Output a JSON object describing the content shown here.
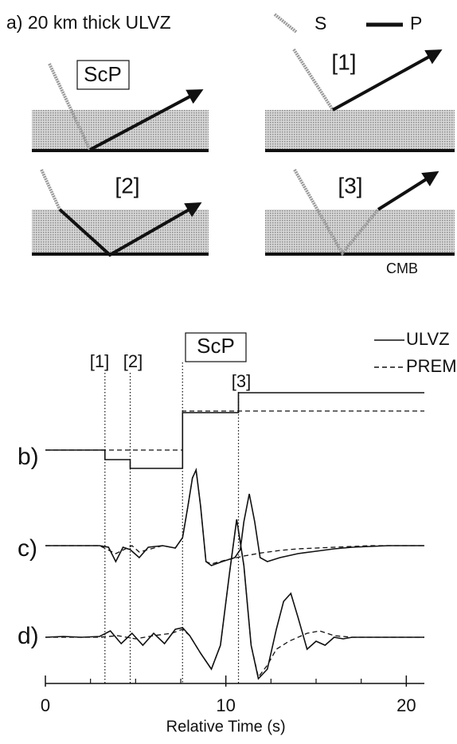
{
  "panel_a": {
    "label": "a) 20 km thick ULVZ",
    "legend": [
      "S",
      "P"
    ],
    "diagrams": [
      "ScP",
      "[1]",
      "[2]",
      "[3]"
    ],
    "cmb_label": "CMB"
  },
  "chart_data": {
    "type": "line",
    "xlabel": "Relative Time (s)",
    "xlim": [
      0,
      21
    ],
    "xticks": [
      0,
      10,
      20
    ],
    "xminorticks": [
      2.5,
      5,
      7.5,
      12.5,
      15,
      17.5
    ],
    "markers": [
      {
        "label": "[1]",
        "x": 3.3
      },
      {
        "label": "[2]",
        "x": 4.7
      },
      {
        "label": "ScP",
        "x": 7.6
      },
      {
        "label": "[3]",
        "x": 10.7
      }
    ],
    "panels": [
      {
        "label": "b)",
        "series": [
          {
            "name": "ULVZ",
            "style": "solid",
            "color": "#111111",
            "x": [
              0,
              3.3,
              3.3,
              4.7,
              4.7,
              7.6,
              7.6,
              10.7,
              10.7,
              21
            ],
            "values": [
              0,
              0,
              -0.12,
              -0.12,
              -0.23,
              -0.23,
              0.47,
              0.47,
              0.72,
              0.72
            ]
          },
          {
            "name": "PREM",
            "style": "dashed",
            "color": "#111111",
            "x": [
              0,
              7.6,
              7.6,
              21
            ],
            "values": [
              0,
              0,
              0.49,
              0.49
            ]
          }
        ]
      },
      {
        "label": "c)",
        "series": [
          {
            "name": "ULVZ",
            "style": "solid",
            "color": "#111111",
            "x": [
              0,
              3.0,
              3.5,
              3.9,
              4.3,
              4.7,
              5.2,
              5.7,
              6.5,
              7.2,
              7.6,
              7.9,
              8.15,
              8.35,
              8.6,
              8.9,
              9.2,
              9.8,
              10.5,
              10.8,
              11.0,
              11.3,
              11.6,
              11.9,
              12.3,
              13,
              14,
              15,
              16,
              17,
              18,
              19,
              20,
              21
            ],
            "values": [
              0,
              0,
              -0.02,
              -0.2,
              -0.02,
              -0.05,
              -0.15,
              -0.02,
              0,
              -0.03,
              0.1,
              0.5,
              0.85,
              0.95,
              0.5,
              -0.2,
              -0.25,
              -0.2,
              -0.15,
              -0.05,
              0.3,
              0.65,
              0.3,
              -0.15,
              -0.2,
              -0.15,
              -0.1,
              -0.07,
              -0.04,
              -0.02,
              -0.01,
              0,
              0,
              0
            ]
          },
          {
            "name": "PREM",
            "style": "dashed",
            "color": "#111111",
            "x": [
              0,
              3.0,
              3.9,
              4.8,
              5.2,
              6.5,
              7.2,
              7.6,
              7.9,
              8.15,
              8.35,
              8.6,
              8.9,
              9.2,
              10,
              11,
              12,
              13,
              14,
              15,
              16,
              17,
              18,
              19,
              21
            ],
            "values": [
              0,
              0,
              -0.1,
              0,
              -0.08,
              0,
              -0.03,
              0.1,
              0.5,
              0.85,
              0.95,
              0.5,
              -0.2,
              -0.23,
              -0.18,
              -0.13,
              -0.09,
              -0.06,
              -0.04,
              -0.03,
              -0.02,
              -0.01,
              0,
              0,
              0
            ]
          }
        ]
      },
      {
        "label": "d)",
        "series": [
          {
            "name": "ULVZ",
            "style": "solid",
            "color": "#111111",
            "x": [
              0,
              1,
              2,
              3,
              3.6,
              4.2,
              4.8,
              5.4,
              6,
              6.6,
              7.2,
              7.6,
              8.0,
              8.6,
              9.2,
              9.7,
              10.2,
              10.6,
              11.0,
              11.4,
              11.8,
              12.3,
              12.8,
              13.2,
              13.6,
              14.0,
              14.5,
              15,
              15.5,
              16,
              16.5,
              17,
              18,
              19,
              21
            ],
            "values": [
              0,
              0.01,
              0,
              0.01,
              0.08,
              -0.08,
              0.05,
              -0.1,
              0.05,
              -0.08,
              0.1,
              0.12,
              0.02,
              -0.2,
              -0.4,
              -0.1,
              0.8,
              1.48,
              0.9,
              -0.1,
              -0.52,
              -0.4,
              0.1,
              0.45,
              0.55,
              0.25,
              -0.15,
              -0.05,
              -0.1,
              0,
              -0.02,
              0,
              0,
              0,
              0
            ]
          },
          {
            "name": "PREM",
            "style": "dashed",
            "color": "#111111",
            "x": [
              0,
              2,
              3,
              4,
              5,
              6,
              7,
              7.6,
              8.0,
              8.6,
              9.2,
              9.7,
              10.2,
              10.6,
              11.0,
              11.4,
              11.8,
              12.3,
              12.8,
              13.5,
              14.5,
              15.2,
              16,
              17,
              18,
              21
            ],
            "values": [
              0,
              0,
              0,
              0.02,
              -0.02,
              0.02,
              0.05,
              0.1,
              0.02,
              -0.2,
              -0.4,
              -0.1,
              0.8,
              1.48,
              0.9,
              -0.1,
              -0.5,
              -0.35,
              -0.15,
              -0.05,
              0.05,
              0.08,
              0.02,
              0,
              0,
              0
            ]
          }
        ]
      }
    ]
  }
}
